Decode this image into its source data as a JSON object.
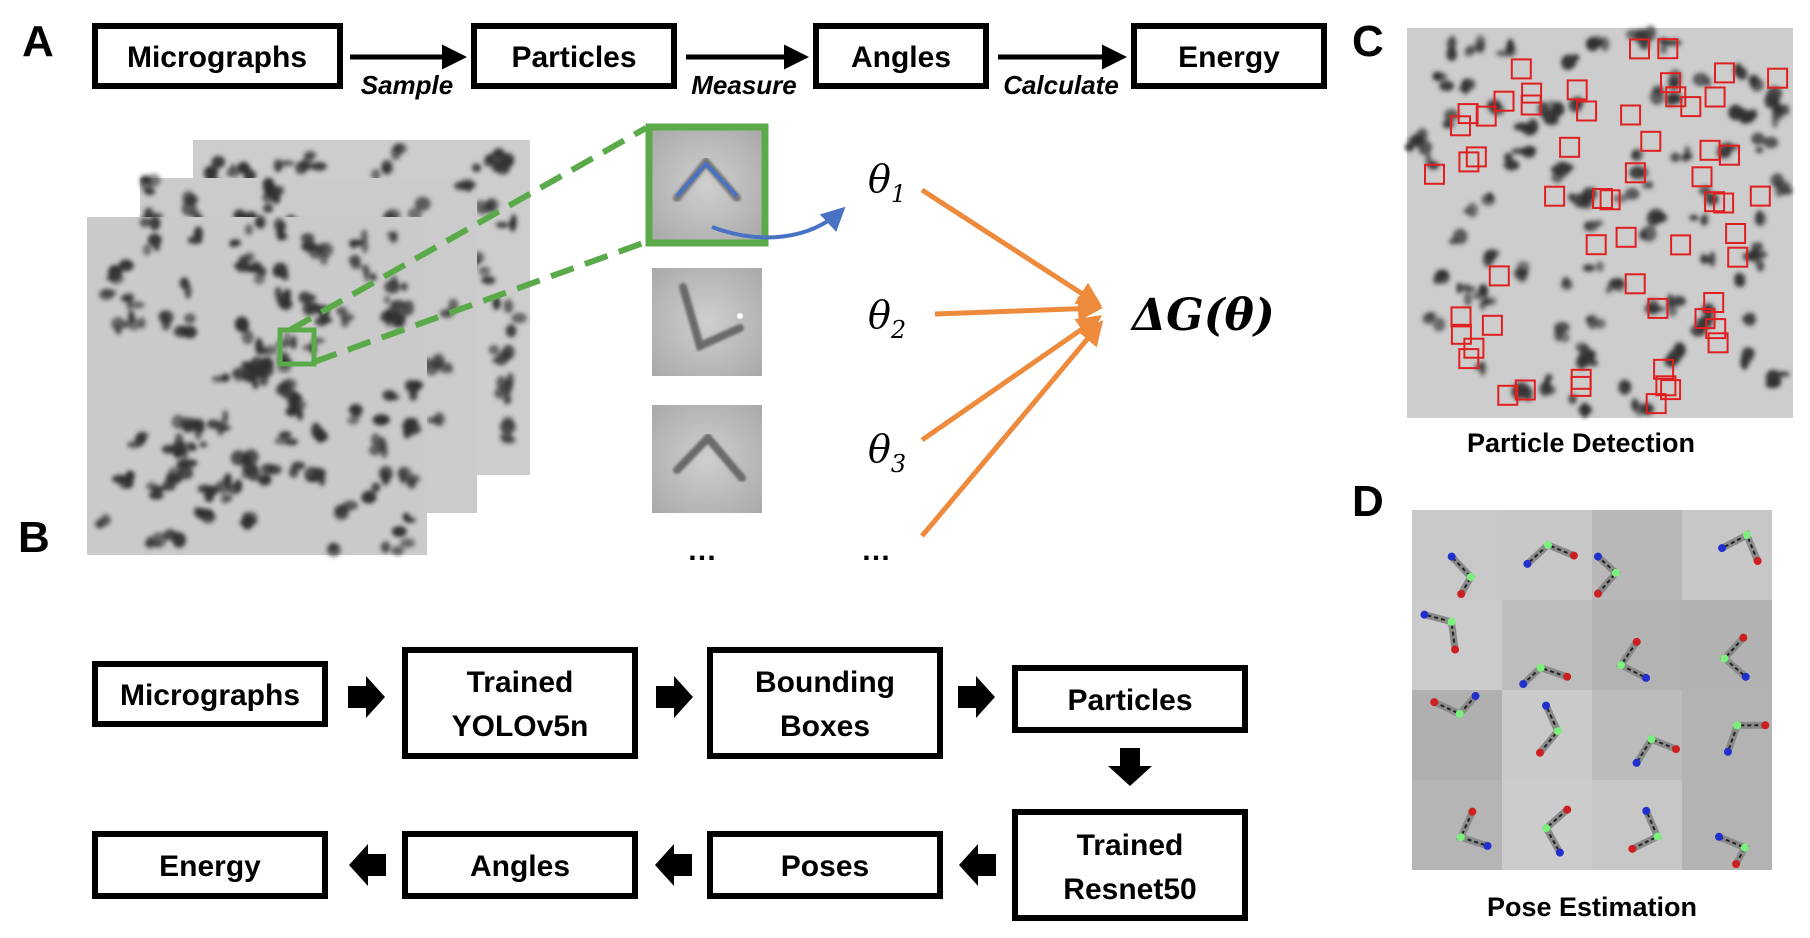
{
  "panels": {
    "a": "A",
    "b": "B",
    "c": "C",
    "d": "D"
  },
  "panel_a": {
    "flow": [
      "Micrographs",
      "Particles",
      "Angles",
      "Energy"
    ],
    "steps": [
      "Sample",
      "Measure",
      "Calculate"
    ],
    "thetas": [
      {
        "sym": "θ",
        "sub": "1"
      },
      {
        "sym": "θ",
        "sub": "2"
      },
      {
        "sym": "θ",
        "sub": "3"
      }
    ],
    "ellipsis_left": "…",
    "ellipsis_right": "…",
    "result": "ΔG(θ)"
  },
  "panel_b": {
    "row1": [
      [
        "Micrographs"
      ],
      [
        "Trained",
        "YOLOv5n"
      ],
      [
        "Bounding",
        "Boxes"
      ],
      [
        "Particles"
      ]
    ],
    "row2": [
      [
        "Energy"
      ],
      [
        "Angles"
      ],
      [
        "Poses"
      ],
      [
        "Trained",
        "Resnet50"
      ]
    ]
  },
  "panel_c": {
    "caption": "Particle Detection"
  },
  "panel_d": {
    "caption": "Pose Estimation"
  },
  "colors": {
    "box_green": "#5aaa4a",
    "arrow_orange": "#ed8a3c",
    "arrow_blue": "#4a72c4",
    "detect_red": "#e02020",
    "pose_green": "#7cf07c",
    "pose_red": "#cc2020",
    "pose_blue": "#2030cc"
  }
}
